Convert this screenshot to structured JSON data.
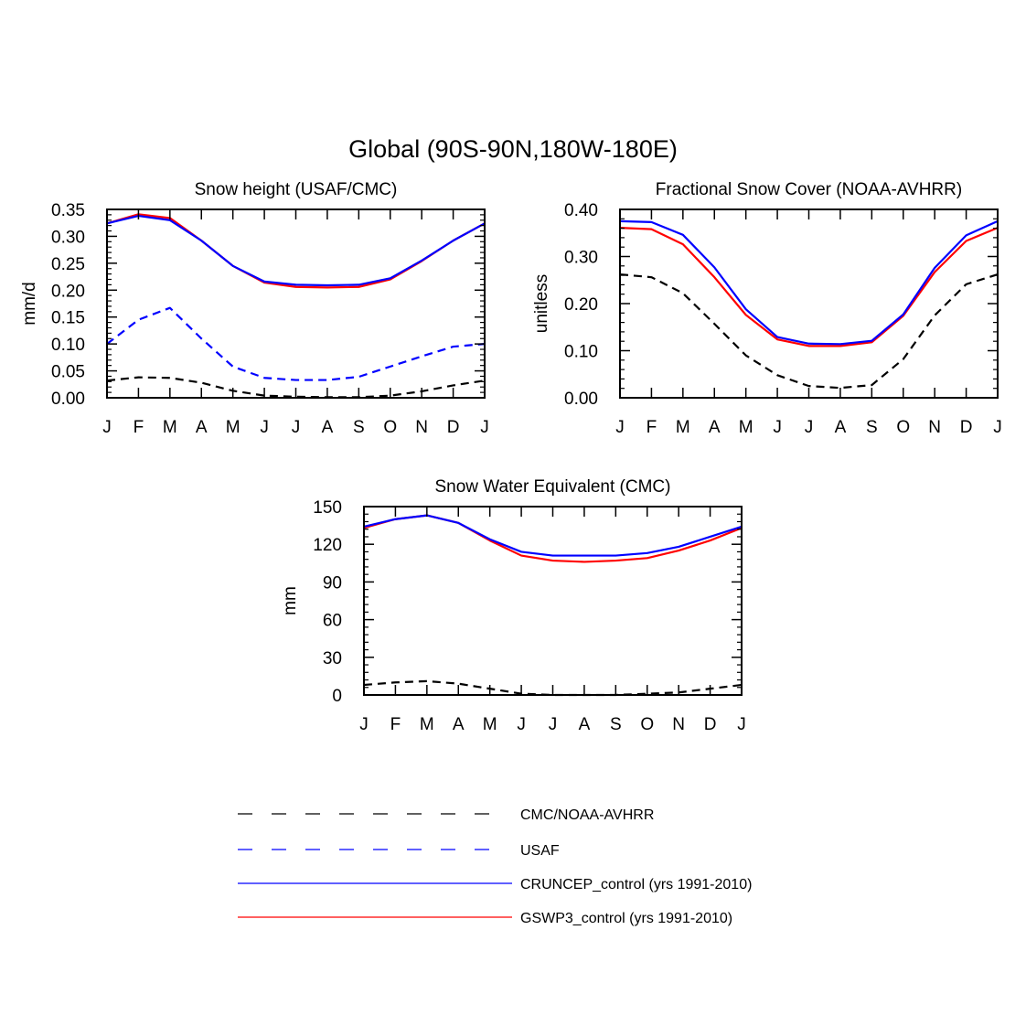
{
  "page_title": "Global (90S-90N,180W-180E)",
  "colors": {
    "obs": "#000000",
    "usaf": "#0000ff",
    "cruncep": "#0000ff",
    "gswp3": "#ff0000"
  },
  "legend": [
    {
      "label": "CMC/NOAA-AVHRR",
      "color": "#000000",
      "dash": true
    },
    {
      "label": "USAF",
      "color": "#0000ff",
      "dash": true
    },
    {
      "label": "CRUNCEP_control (yrs 1991-2010)",
      "color": "#0000ff",
      "dash": false
    },
    {
      "label": "GSWP3_control (yrs 1991-2010)",
      "color": "#ff0000",
      "dash": false
    }
  ],
  "chart_data": [
    {
      "type": "line",
      "title": "Snow height (USAF/CMC)",
      "xlabel": "",
      "ylabel": "mm/d",
      "categories": [
        "J",
        "F",
        "M",
        "A",
        "M",
        "J",
        "J",
        "A",
        "S",
        "O",
        "N",
        "D",
        "J"
      ],
      "ylim": [
        0,
        0.35
      ],
      "yticks": [
        0,
        0.05,
        0.1,
        0.15,
        0.2,
        0.25,
        0.3,
        0.35
      ],
      "ytick_labels": [
        "0.00",
        "0.05",
        "0.10",
        "0.15",
        "0.20",
        "0.25",
        "0.30",
        "0.35"
      ],
      "series": [
        {
          "name": "CMC/NOAA-AVHRR",
          "style": "dash",
          "color": "#000000",
          "values": [
            0.032,
            0.038,
            0.037,
            0.028,
            0.013,
            0.004,
            0.002,
            0.001,
            0.001,
            0.004,
            0.012,
            0.023,
            0.032
          ]
        },
        {
          "name": "USAF",
          "style": "dash",
          "color": "#0000ff",
          "values": [
            0.1,
            0.145,
            0.167,
            0.11,
            0.058,
            0.037,
            0.033,
            0.033,
            0.039,
            0.058,
            0.077,
            0.095,
            0.1
          ]
        },
        {
          "name": "GSWP3_control (yrs 1991-2010)",
          "style": "solid",
          "color": "#ff0000",
          "values": [
            0.324,
            0.341,
            0.334,
            0.292,
            0.245,
            0.214,
            0.206,
            0.205,
            0.206,
            0.22,
            0.254,
            0.292,
            0.324
          ]
        },
        {
          "name": "CRUNCEP_control (yrs 1991-2010)",
          "style": "solid",
          "color": "#0000ff",
          "values": [
            0.324,
            0.338,
            0.33,
            0.292,
            0.245,
            0.216,
            0.21,
            0.209,
            0.21,
            0.222,
            0.255,
            0.292,
            0.324
          ]
        }
      ]
    },
    {
      "type": "line",
      "title": "Fractional Snow Cover (NOAA-AVHRR)",
      "xlabel": "",
      "ylabel": "unitless",
      "categories": [
        "J",
        "F",
        "M",
        "A",
        "M",
        "J",
        "J",
        "A",
        "S",
        "O",
        "N",
        "D",
        "J"
      ],
      "ylim": [
        0,
        0.4
      ],
      "yticks": [
        0,
        0.1,
        0.2,
        0.3,
        0.4
      ],
      "ytick_labels": [
        "0.00",
        "0.10",
        "0.20",
        "0.30",
        "0.40"
      ],
      "series": [
        {
          "name": "CMC/NOAA-AVHRR",
          "style": "dash",
          "color": "#000000",
          "values": [
            0.262,
            0.256,
            0.222,
            0.157,
            0.09,
            0.048,
            0.025,
            0.021,
            0.027,
            0.082,
            0.175,
            0.241,
            0.262
          ]
        },
        {
          "name": "GSWP3_control (yrs 1991-2010)",
          "style": "solid",
          "color": "#ff0000",
          "values": [
            0.361,
            0.358,
            0.326,
            0.256,
            0.176,
            0.124,
            0.11,
            0.11,
            0.118,
            0.174,
            0.267,
            0.333,
            0.361
          ]
        },
        {
          "name": "CRUNCEP_control (yrs 1991-2010)",
          "style": "solid",
          "color": "#0000ff",
          "values": [
            0.375,
            0.373,
            0.346,
            0.277,
            0.188,
            0.129,
            0.115,
            0.114,
            0.121,
            0.177,
            0.276,
            0.345,
            0.375
          ]
        }
      ]
    },
    {
      "type": "line",
      "title": "Snow Water Equivalent (CMC)",
      "xlabel": "",
      "ylabel": "mm",
      "categories": [
        "J",
        "F",
        "M",
        "A",
        "M",
        "J",
        "J",
        "A",
        "S",
        "O",
        "N",
        "D",
        "J"
      ],
      "ylim": [
        0,
        150
      ],
      "yticks": [
        0,
        30,
        60,
        90,
        120,
        150
      ],
      "ytick_labels": [
        "0",
        "30",
        "60",
        "90",
        "120",
        "150"
      ],
      "series": [
        {
          "name": "CMC/NOAA-AVHRR",
          "style": "dash",
          "color": "#000000",
          "values": [
            8,
            10,
            11,
            9,
            5,
            1,
            0,
            0,
            0,
            1,
            2,
            5,
            8
          ]
        },
        {
          "name": "GSWP3_control (yrs 1991-2010)",
          "style": "solid",
          "color": "#ff0000",
          "values": [
            133,
            140,
            143,
            137,
            123,
            111,
            107,
            106,
            107,
            109,
            115,
            123,
            133
          ]
        },
        {
          "name": "CRUNCEP_control (yrs 1991-2010)",
          "style": "solid",
          "color": "#0000ff",
          "values": [
            134,
            140,
            143,
            137,
            124,
            114,
            111,
            111,
            111,
            113,
            118,
            126,
            134
          ]
        }
      ]
    }
  ]
}
